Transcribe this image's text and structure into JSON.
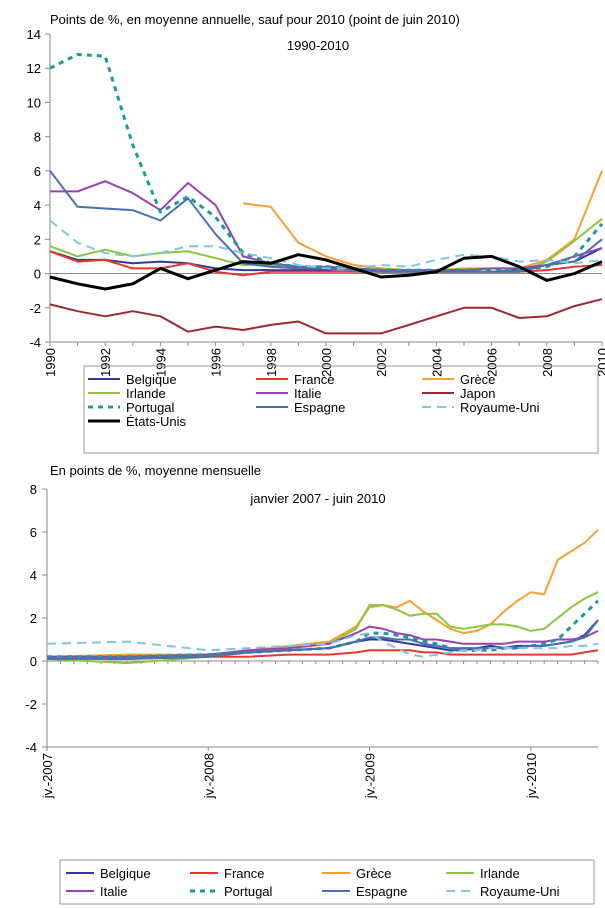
{
  "chart_data": [
    {
      "type": "line",
      "title": "1990-2010",
      "subtitle": "Points de %, en moyenne annuelle, sauf pour 2010 (point de juin 2010)",
      "xlabel": "",
      "ylabel": "",
      "xlim": [
        1990,
        2010
      ],
      "ylim": [
        -4,
        14
      ],
      "yticks": [
        "-4",
        "-2",
        "0",
        "2",
        "4",
        "6",
        "8",
        "10",
        "12",
        "14"
      ],
      "xticks": [
        "1990",
        "1992",
        "1994",
        "1996",
        "1998",
        "2000",
        "2002",
        "2004",
        "2006",
        "2008",
        "2010"
      ],
      "grid": false,
      "legend_position": "bottom",
      "x": [
        1990,
        1991,
        1992,
        1993,
        1994,
        1995,
        1996,
        1997,
        1998,
        1999,
        2000,
        2001,
        2002,
        2003,
        2004,
        2005,
        2006,
        2007,
        2008,
        2009,
        2010
      ],
      "series": [
        {
          "name": "Belgique",
          "color": "#2e3a9e",
          "dash": "solid",
          "width": 2,
          "values": [
            1.3,
            0.8,
            0.8,
            0.6,
            0.7,
            0.6,
            0.3,
            0.2,
            0.2,
            0.2,
            0.2,
            0.3,
            0.2,
            0.1,
            0.1,
            0.1,
            0.1,
            0.2,
            0.5,
            0.7,
            1.5
          ]
        },
        {
          "name": "France",
          "color": "#e23b2e",
          "dash": "solid",
          "width": 2,
          "values": [
            1.3,
            0.7,
            0.8,
            0.3,
            0.3,
            0.6,
            0.1,
            -0.1,
            0.1,
            0.1,
            0.1,
            0.1,
            0.1,
            0.1,
            0.1,
            0.1,
            0.1,
            0.1,
            0.2,
            0.4,
            0.5
          ]
        },
        {
          "name": "Grèce",
          "color": "#f5a130",
          "dash": "solid",
          "width": 2,
          "values": [
            null,
            null,
            null,
            null,
            null,
            null,
            null,
            4.1,
            3.9,
            1.8,
            1.0,
            0.5,
            0.3,
            0.2,
            0.2,
            0.3,
            0.3,
            0.3,
            0.8,
            2.0,
            6.0
          ]
        },
        {
          "name": "Irlande",
          "color": "#8cc63f",
          "dash": "solid",
          "width": 2,
          "values": [
            1.6,
            1.0,
            1.4,
            1.0,
            1.2,
            1.3,
            0.9,
            0.5,
            0.5,
            0.4,
            0.3,
            0.2,
            0.1,
            0.1,
            0.1,
            0.1,
            0.1,
            0.1,
            0.7,
            1.9,
            3.2
          ]
        },
        {
          "name": "Italie",
          "color": "#9b3fb5",
          "dash": "solid",
          "width": 2,
          "values": [
            4.8,
            4.8,
            5.4,
            4.7,
            3.7,
            5.3,
            4.0,
            1.0,
            0.6,
            0.4,
            0.4,
            0.3,
            0.2,
            0.2,
            0.2,
            0.2,
            0.3,
            0.3,
            0.5,
            1.0,
            1.5
          ]
        },
        {
          "name": "Japon",
          "color": "#9b2a2a",
          "dash": "solid",
          "width": 2,
          "values": [
            -1.8,
            -2.2,
            -2.5,
            -2.2,
            -2.5,
            -3.4,
            -3.1,
            -3.3,
            -3.0,
            -2.8,
            -3.5,
            -3.5,
            -3.5,
            -3.0,
            -2.5,
            -2.0,
            -2.0,
            -2.6,
            -2.5,
            -1.9,
            -1.5
          ]
        },
        {
          "name": "Portugal",
          "color": "#1a9c9c",
          "dash": "5,5",
          "width": 3,
          "values": [
            12.0,
            12.8,
            12.7,
            7.5,
            3.6,
            4.5,
            3.3,
            1.2,
            0.6,
            0.4,
            0.4,
            0.3,
            0.2,
            0.2,
            0.2,
            0.2,
            0.2,
            0.2,
            0.4,
            1.0,
            2.9
          ]
        },
        {
          "name": "Espagne",
          "color": "#4a6fb0",
          "dash": "solid",
          "width": 2,
          "values": [
            6.0,
            3.9,
            3.8,
            3.7,
            3.1,
            4.4,
            2.3,
            0.6,
            0.4,
            0.3,
            0.3,
            0.2,
            0.1,
            0.1,
            0.1,
            0.1,
            0.1,
            0.1,
            0.5,
            0.7,
            2.0
          ]
        },
        {
          "name": "Royaume-Uni",
          "color": "#7fc6e0",
          "dash": "9,6",
          "width": 2,
          "values": [
            3.1,
            1.8,
            1.2,
            1.0,
            1.2,
            1.6,
            1.6,
            1.2,
            0.9,
            0.5,
            0.3,
            0.3,
            0.5,
            0.4,
            0.8,
            1.1,
            1.0,
            0.7,
            0.8,
            0.6,
            0.8
          ]
        },
        {
          "name": "États-Unis",
          "color": "#000000",
          "dash": "solid",
          "width": 3,
          "values": [
            -0.2,
            -0.6,
            -0.9,
            -0.6,
            0.3,
            -0.3,
            0.2,
            0.7,
            0.6,
            1.1,
            0.8,
            0.3,
            -0.2,
            -0.1,
            0.1,
            0.9,
            1.0,
            0.4,
            -0.4,
            0.0,
            0.7
          ]
        }
      ]
    },
    {
      "type": "line",
      "title": "janvier 2007 - juin 2010",
      "subtitle": "En points de %, moyenne mensuelle",
      "xlabel": "",
      "ylabel": "",
      "xlim": [
        0,
        41
      ],
      "ylim": [
        -4,
        8
      ],
      "yticks": [
        "-4",
        "-2",
        "0",
        "2",
        "4",
        "6",
        "8"
      ],
      "xticks": [
        {
          "label": "jv.-2007",
          "x": 0
        },
        {
          "label": "jv.-2008",
          "x": 12
        },
        {
          "label": "jv.-2009",
          "x": 24
        },
        {
          "label": "jv.-2010",
          "x": 36
        }
      ],
      "grid": false,
      "legend_position": "bottom",
      "x_knots": [
        0,
        6,
        12,
        15,
        18,
        21,
        23,
        24,
        25,
        26,
        27,
        28,
        29,
        30,
        31,
        32,
        33,
        34,
        35,
        36,
        37,
        38,
        39,
        40,
        41
      ],
      "series": [
        {
          "name": "Belgique",
          "color": "#2e3a9e",
          "dash": "solid",
          "width": 2,
          "values": [
            0.2,
            0.2,
            0.3,
            0.4,
            0.5,
            0.6,
            0.9,
            1.0,
            1.0,
            0.9,
            0.8,
            0.7,
            0.6,
            0.5,
            0.5,
            0.6,
            0.7,
            0.6,
            0.7,
            0.7,
            0.7,
            0.8,
            0.9,
            1.2,
            1.9
          ]
        },
        {
          "name": "France",
          "color": "#e23b2e",
          "dash": "solid",
          "width": 2,
          "values": [
            0.1,
            0.1,
            0.2,
            0.2,
            0.3,
            0.3,
            0.4,
            0.5,
            0.5,
            0.5,
            0.5,
            0.4,
            0.4,
            0.3,
            0.3,
            0.3,
            0.3,
            0.3,
            0.3,
            0.3,
            0.3,
            0.3,
            0.3,
            0.4,
            0.5
          ]
        },
        {
          "name": "Grèce",
          "color": "#f5a130",
          "dash": "solid",
          "width": 2,
          "values": [
            0.2,
            0.3,
            0.3,
            0.5,
            0.7,
            0.9,
            1.6,
            2.5,
            2.6,
            2.5,
            2.8,
            2.3,
            1.9,
            1.5,
            1.3,
            1.4,
            1.7,
            2.3,
            2.8,
            3.2,
            3.1,
            4.7,
            5.1,
            5.5,
            6.1
          ]
        },
        {
          "name": "Irlande",
          "color": "#8cc63f",
          "dash": "solid",
          "width": 2,
          "values": [
            0.1,
            -0.1,
            0.2,
            0.4,
            0.6,
            0.8,
            1.5,
            2.6,
            2.6,
            2.4,
            2.1,
            2.2,
            2.2,
            1.6,
            1.5,
            1.6,
            1.7,
            1.7,
            1.6,
            1.4,
            1.5,
            2.0,
            2.5,
            2.9,
            3.2
          ]
        },
        {
          "name": "Italie",
          "color": "#9b3fb5",
          "dash": "solid",
          "width": 2,
          "values": [
            0.2,
            0.2,
            0.3,
            0.5,
            0.6,
            0.8,
            1.3,
            1.6,
            1.5,
            1.3,
            1.2,
            1.0,
            1.0,
            0.9,
            0.8,
            0.8,
            0.8,
            0.8,
            0.9,
            0.9,
            0.9,
            1.0,
            1.0,
            1.1,
            1.4
          ]
        },
        {
          "name": "Portugal",
          "color": "#1a9c9c",
          "dash": "5,5",
          "width": 3,
          "values": [
            0.2,
            0.2,
            0.3,
            0.4,
            0.5,
            0.6,
            0.9,
            1.3,
            1.3,
            1.2,
            1.1,
            0.9,
            0.8,
            0.6,
            0.5,
            0.5,
            0.5,
            0.6,
            0.6,
            0.7,
            0.8,
            1.0,
            1.6,
            2.2,
            2.8
          ]
        },
        {
          "name": "Espagne",
          "color": "#4a6fb0",
          "dash": "solid",
          "width": 2,
          "values": [
            0.1,
            0.1,
            0.2,
            0.4,
            0.5,
            0.6,
            0.9,
            1.1,
            1.1,
            1.0,
            1.0,
            0.8,
            0.7,
            0.6,
            0.6,
            0.6,
            0.6,
            0.6,
            0.6,
            0.7,
            0.7,
            0.8,
            0.9,
            1.1,
            1.9
          ]
        },
        {
          "name": "Royaume-Uni",
          "color": "#7fc6e0",
          "dash": "9,6",
          "width": 2,
          "values": [
            0.8,
            0.9,
            0.5,
            0.6,
            0.7,
            0.8,
            1.2,
            1.3,
            0.9,
            0.6,
            0.3,
            0.2,
            0.3,
            0.4,
            0.5,
            0.5,
            0.6,
            0.6,
            0.6,
            0.6,
            0.6,
            0.6,
            0.7,
            0.7,
            0.8
          ]
        }
      ]
    }
  ]
}
